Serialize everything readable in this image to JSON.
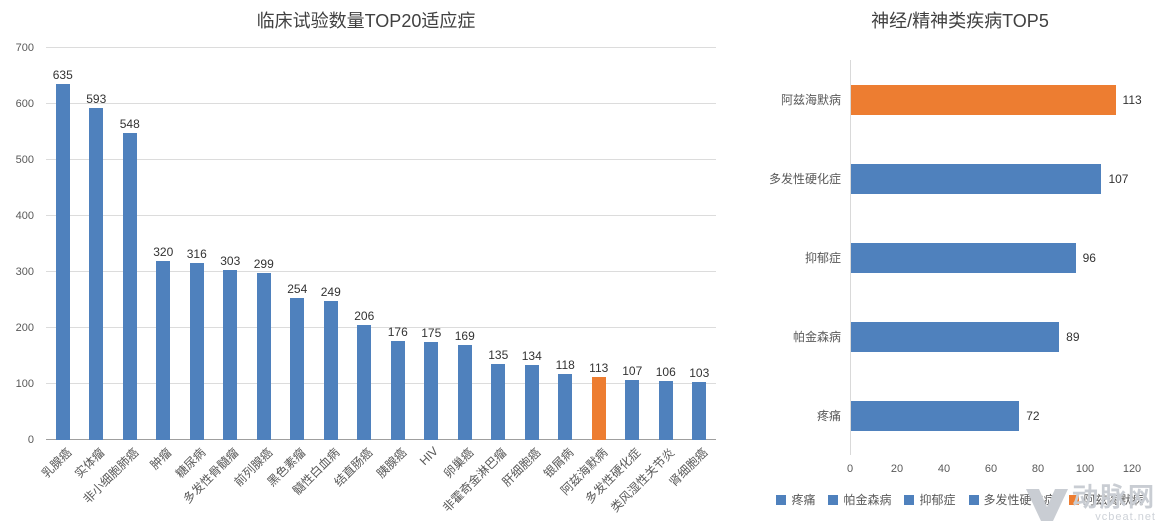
{
  "watermark": {
    "brand": "动脉网",
    "domain": "vcbeat.net"
  },
  "chart_data": [
    {
      "type": "bar",
      "orientation": "vertical",
      "title": "临床试验数量TOP20适应症",
      "categories": [
        "乳腺癌",
        "实体瘤",
        "非小细胞肺癌",
        "肿瘤",
        "糖尿病",
        "多发性骨髓瘤",
        "前列腺癌",
        "黑色素瘤",
        "髓性白血病",
        "结直肠癌",
        "胰腺癌",
        "HIV",
        "卵巢癌",
        "非霍奇金淋巴瘤",
        "肝细胞癌",
        "银屑病",
        "阿兹海默病",
        "多发性硬化症",
        "类风湿性关节炎",
        "肾细胞癌"
      ],
      "values": [
        635,
        593,
        548,
        320,
        316,
        303,
        299,
        254,
        249,
        206,
        176,
        175,
        169,
        135,
        134,
        118,
        113,
        107,
        106,
        103
      ],
      "highlight_index": 16,
      "highlight_category": "阿兹海默病",
      "ylim": [
        0,
        700
      ],
      "yticks": [
        0,
        100,
        200,
        300,
        400,
        500,
        600,
        700
      ],
      "grid": true,
      "value_labels": true,
      "bar_color": "#4F81BD",
      "highlight_color": "#ED7D31"
    },
    {
      "type": "bar",
      "orientation": "horizontal",
      "title": "神经/精神类疾病TOP5",
      "categories": [
        "阿兹海默病",
        "多发性硬化症",
        "抑郁症",
        "帕金森病",
        "疼痛"
      ],
      "values": [
        113,
        107,
        96,
        89,
        72
      ],
      "highlight_index": 0,
      "highlight_category": "阿兹海默病",
      "xlim": [
        0,
        120
      ],
      "xticks": [
        0,
        20,
        40,
        60,
        80,
        100,
        120
      ],
      "grid": false,
      "value_labels": true,
      "bar_color": "#4F81BD",
      "highlight_color": "#ED7D31",
      "legend_position": "bottom",
      "legend": [
        {
          "label": "疼痛",
          "color": "#4F81BD"
        },
        {
          "label": "帕金森病",
          "color": "#4F81BD"
        },
        {
          "label": "抑郁症",
          "color": "#4F81BD"
        },
        {
          "label": "多发性硬化症",
          "color": "#4F81BD"
        },
        {
          "label": "阿兹海默病",
          "color": "#ED7D31"
        }
      ]
    }
  ]
}
